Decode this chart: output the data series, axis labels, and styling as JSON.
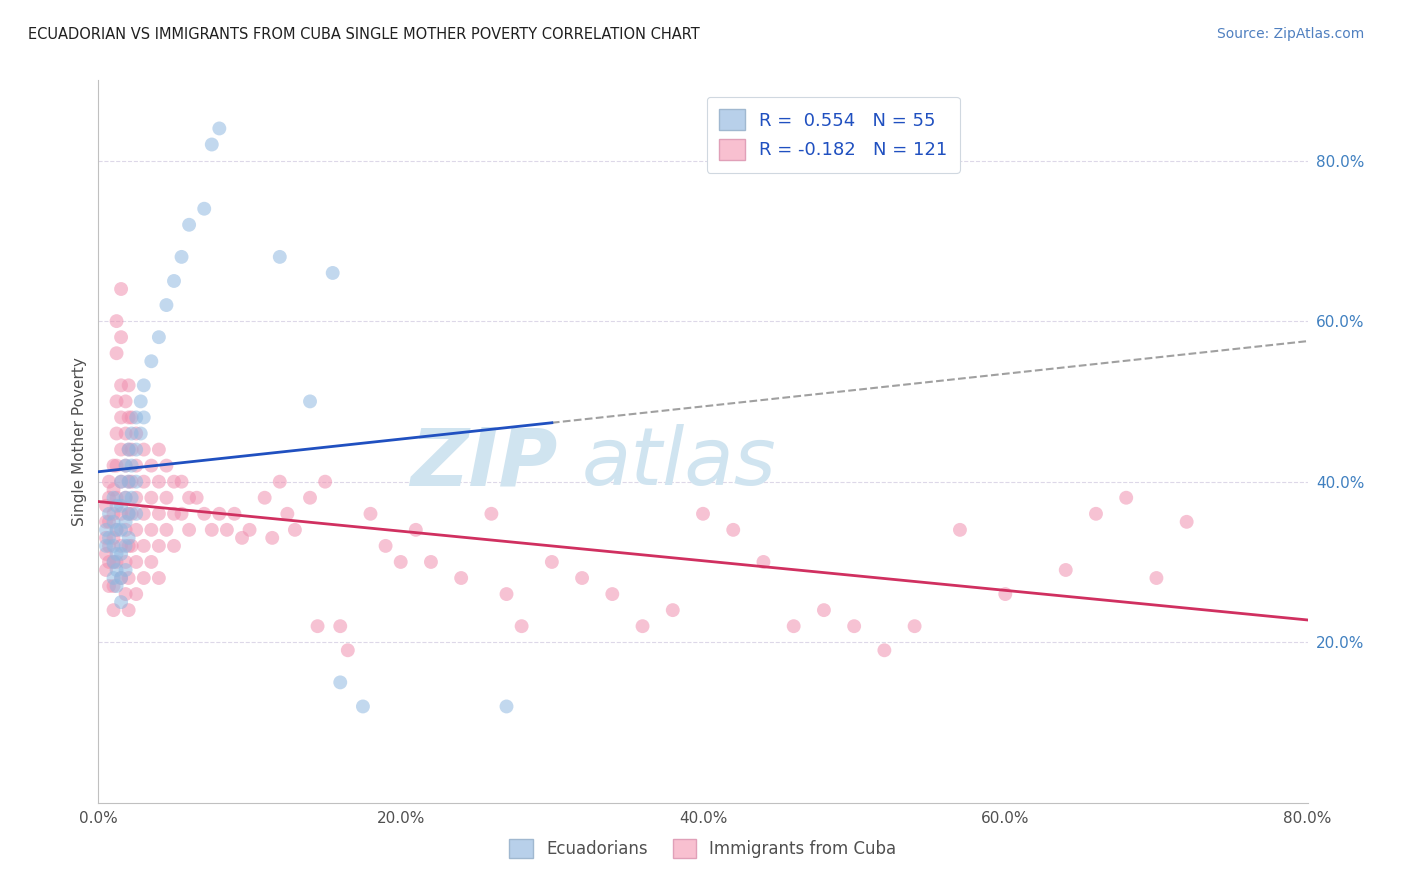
{
  "title": "ECUADORIAN VS IMMIGRANTS FROM CUBA SINGLE MOTHER POVERTY CORRELATION CHART",
  "source": "Source: ZipAtlas.com",
  "ylabel": "Single Mother Poverty",
  "xlim": [
    0.0,
    0.8
  ],
  "ylim": [
    0.0,
    0.9
  ],
  "xtick_labels": [
    "0.0%",
    "20.0%",
    "40.0%",
    "60.0%",
    "80.0%"
  ],
  "xtick_vals": [
    0.0,
    0.2,
    0.4,
    0.6,
    0.8
  ],
  "ytick_labels_right": [
    "80.0%",
    "60.0%",
    "40.0%",
    "20.0%"
  ],
  "ytick_vals_right": [
    0.8,
    0.6,
    0.4,
    0.2
  ],
  "blue_color": "#90b8e0",
  "pink_color": "#f090b0",
  "blue_line_color": "#2050c0",
  "pink_line_color": "#d03060",
  "blue_fill_color": "#b8d0ea",
  "pink_fill_color": "#f8c0d0",
  "background_color": "#ffffff",
  "grid_color": "#ddd8e8",
  "title_color": "#202020",
  "source_color": "#5080c0",
  "legend_text_color": "#2050c0",
  "watermark_color": "#d0e4f0",
  "blue_scatter": [
    [
      0.005,
      0.34
    ],
    [
      0.005,
      0.32
    ],
    [
      0.007,
      0.36
    ],
    [
      0.007,
      0.33
    ],
    [
      0.01,
      0.38
    ],
    [
      0.01,
      0.35
    ],
    [
      0.01,
      0.32
    ],
    [
      0.01,
      0.3
    ],
    [
      0.01,
      0.28
    ],
    [
      0.012,
      0.37
    ],
    [
      0.012,
      0.34
    ],
    [
      0.012,
      0.31
    ],
    [
      0.012,
      0.29
    ],
    [
      0.012,
      0.27
    ],
    [
      0.015,
      0.4
    ],
    [
      0.015,
      0.37
    ],
    [
      0.015,
      0.34
    ],
    [
      0.015,
      0.31
    ],
    [
      0.015,
      0.28
    ],
    [
      0.015,
      0.25
    ],
    [
      0.018,
      0.42
    ],
    [
      0.018,
      0.38
    ],
    [
      0.018,
      0.35
    ],
    [
      0.018,
      0.32
    ],
    [
      0.018,
      0.29
    ],
    [
      0.02,
      0.44
    ],
    [
      0.02,
      0.4
    ],
    [
      0.02,
      0.36
    ],
    [
      0.02,
      0.33
    ],
    [
      0.022,
      0.46
    ],
    [
      0.022,
      0.42
    ],
    [
      0.022,
      0.38
    ],
    [
      0.025,
      0.48
    ],
    [
      0.025,
      0.44
    ],
    [
      0.025,
      0.4
    ],
    [
      0.025,
      0.36
    ],
    [
      0.028,
      0.5
    ],
    [
      0.028,
      0.46
    ],
    [
      0.03,
      0.52
    ],
    [
      0.03,
      0.48
    ],
    [
      0.035,
      0.55
    ],
    [
      0.04,
      0.58
    ],
    [
      0.045,
      0.62
    ],
    [
      0.05,
      0.65
    ],
    [
      0.055,
      0.68
    ],
    [
      0.06,
      0.72
    ],
    [
      0.07,
      0.74
    ],
    [
      0.075,
      0.82
    ],
    [
      0.08,
      0.84
    ],
    [
      0.12,
      0.68
    ],
    [
      0.14,
      0.5
    ],
    [
      0.155,
      0.66
    ],
    [
      0.16,
      0.15
    ],
    [
      0.175,
      0.12
    ],
    [
      0.27,
      0.12
    ]
  ],
  "pink_scatter": [
    [
      0.005,
      0.37
    ],
    [
      0.005,
      0.35
    ],
    [
      0.005,
      0.33
    ],
    [
      0.005,
      0.31
    ],
    [
      0.005,
      0.29
    ],
    [
      0.007,
      0.4
    ],
    [
      0.007,
      0.38
    ],
    [
      0.007,
      0.35
    ],
    [
      0.007,
      0.32
    ],
    [
      0.007,
      0.3
    ],
    [
      0.007,
      0.27
    ],
    [
      0.01,
      0.42
    ],
    [
      0.01,
      0.39
    ],
    [
      0.01,
      0.36
    ],
    [
      0.01,
      0.33
    ],
    [
      0.01,
      0.3
    ],
    [
      0.01,
      0.27
    ],
    [
      0.01,
      0.24
    ],
    [
      0.012,
      0.6
    ],
    [
      0.012,
      0.56
    ],
    [
      0.012,
      0.5
    ],
    [
      0.012,
      0.46
    ],
    [
      0.012,
      0.42
    ],
    [
      0.012,
      0.38
    ],
    [
      0.012,
      0.34
    ],
    [
      0.012,
      0.3
    ],
    [
      0.015,
      0.64
    ],
    [
      0.015,
      0.58
    ],
    [
      0.015,
      0.52
    ],
    [
      0.015,
      0.48
    ],
    [
      0.015,
      0.44
    ],
    [
      0.015,
      0.4
    ],
    [
      0.015,
      0.36
    ],
    [
      0.015,
      0.32
    ],
    [
      0.015,
      0.28
    ],
    [
      0.018,
      0.5
    ],
    [
      0.018,
      0.46
    ],
    [
      0.018,
      0.42
    ],
    [
      0.018,
      0.38
    ],
    [
      0.018,
      0.34
    ],
    [
      0.018,
      0.3
    ],
    [
      0.018,
      0.26
    ],
    [
      0.02,
      0.52
    ],
    [
      0.02,
      0.48
    ],
    [
      0.02,
      0.44
    ],
    [
      0.02,
      0.4
    ],
    [
      0.02,
      0.36
    ],
    [
      0.02,
      0.32
    ],
    [
      0.02,
      0.28
    ],
    [
      0.02,
      0.24
    ],
    [
      0.022,
      0.48
    ],
    [
      0.022,
      0.44
    ],
    [
      0.022,
      0.4
    ],
    [
      0.022,
      0.36
    ],
    [
      0.022,
      0.32
    ],
    [
      0.025,
      0.46
    ],
    [
      0.025,
      0.42
    ],
    [
      0.025,
      0.38
    ],
    [
      0.025,
      0.34
    ],
    [
      0.025,
      0.3
    ],
    [
      0.025,
      0.26
    ],
    [
      0.03,
      0.44
    ],
    [
      0.03,
      0.4
    ],
    [
      0.03,
      0.36
    ],
    [
      0.03,
      0.32
    ],
    [
      0.03,
      0.28
    ],
    [
      0.035,
      0.42
    ],
    [
      0.035,
      0.38
    ],
    [
      0.035,
      0.34
    ],
    [
      0.035,
      0.3
    ],
    [
      0.04,
      0.44
    ],
    [
      0.04,
      0.4
    ],
    [
      0.04,
      0.36
    ],
    [
      0.04,
      0.32
    ],
    [
      0.04,
      0.28
    ],
    [
      0.045,
      0.42
    ],
    [
      0.045,
      0.38
    ],
    [
      0.045,
      0.34
    ],
    [
      0.05,
      0.4
    ],
    [
      0.05,
      0.36
    ],
    [
      0.05,
      0.32
    ],
    [
      0.055,
      0.4
    ],
    [
      0.055,
      0.36
    ],
    [
      0.06,
      0.38
    ],
    [
      0.06,
      0.34
    ],
    [
      0.065,
      0.38
    ],
    [
      0.07,
      0.36
    ],
    [
      0.075,
      0.34
    ],
    [
      0.08,
      0.36
    ],
    [
      0.085,
      0.34
    ],
    [
      0.09,
      0.36
    ],
    [
      0.095,
      0.33
    ],
    [
      0.1,
      0.34
    ],
    [
      0.11,
      0.38
    ],
    [
      0.115,
      0.33
    ],
    [
      0.12,
      0.4
    ],
    [
      0.125,
      0.36
    ],
    [
      0.13,
      0.34
    ],
    [
      0.14,
      0.38
    ],
    [
      0.145,
      0.22
    ],
    [
      0.15,
      0.4
    ],
    [
      0.16,
      0.22
    ],
    [
      0.165,
      0.19
    ],
    [
      0.18,
      0.36
    ],
    [
      0.19,
      0.32
    ],
    [
      0.2,
      0.3
    ],
    [
      0.21,
      0.34
    ],
    [
      0.22,
      0.3
    ],
    [
      0.24,
      0.28
    ],
    [
      0.26,
      0.36
    ],
    [
      0.27,
      0.26
    ],
    [
      0.28,
      0.22
    ],
    [
      0.3,
      0.3
    ],
    [
      0.32,
      0.28
    ],
    [
      0.34,
      0.26
    ],
    [
      0.36,
      0.22
    ],
    [
      0.38,
      0.24
    ],
    [
      0.4,
      0.36
    ],
    [
      0.42,
      0.34
    ],
    [
      0.44,
      0.3
    ],
    [
      0.46,
      0.22
    ],
    [
      0.48,
      0.24
    ],
    [
      0.5,
      0.22
    ],
    [
      0.52,
      0.19
    ],
    [
      0.54,
      0.22
    ],
    [
      0.57,
      0.34
    ],
    [
      0.6,
      0.26
    ],
    [
      0.64,
      0.29
    ],
    [
      0.66,
      0.36
    ],
    [
      0.68,
      0.38
    ],
    [
      0.7,
      0.28
    ],
    [
      0.72,
      0.35
    ]
  ]
}
